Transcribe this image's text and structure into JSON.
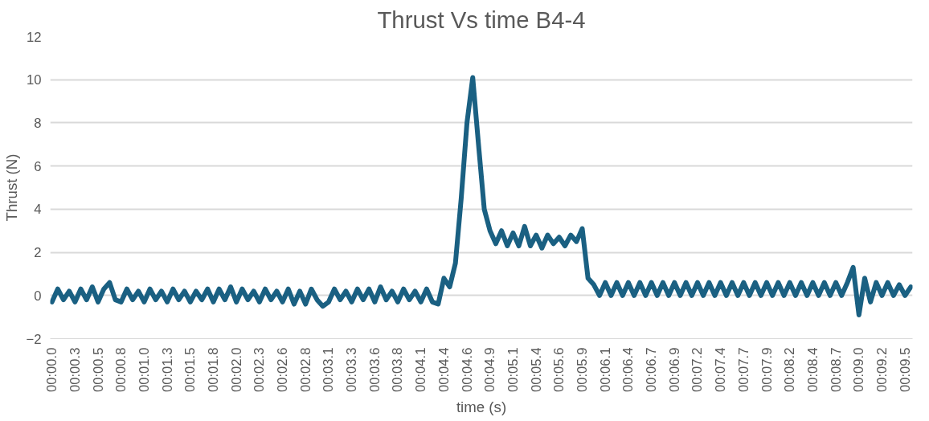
{
  "chart_data": {
    "type": "line",
    "title": "Thrust Vs time B4-4",
    "xlabel": "time (s)",
    "ylabel": "Thrust (N)",
    "ylim": [
      -2,
      12
    ],
    "yticks": [
      -2,
      0,
      2,
      4,
      6,
      8,
      10,
      12
    ],
    "categories": [
      "00:00.0",
      null,
      null,
      null,
      "00:00.3",
      null,
      null,
      null,
      "00:00.5",
      null,
      null,
      null,
      "00:00.8",
      null,
      null,
      null,
      "00:01.0",
      null,
      null,
      null,
      "00:01.3",
      null,
      null,
      null,
      "00:01.5",
      null,
      null,
      null,
      "00:01.8",
      null,
      null,
      null,
      "00:02.0",
      null,
      null,
      null,
      "00:02.3",
      null,
      null,
      null,
      "00:02.6",
      null,
      null,
      null,
      "00:02.8",
      null,
      null,
      null,
      "00:03.1",
      null,
      null,
      null,
      "00:03.3",
      null,
      null,
      null,
      "00:03.6",
      null,
      null,
      null,
      "00:03.8",
      null,
      null,
      null,
      "00:04.1",
      null,
      null,
      null,
      "00:04.4",
      null,
      null,
      null,
      "00:04.6",
      null,
      null,
      null,
      "00:04.9",
      null,
      null,
      null,
      "00:05.1",
      null,
      null,
      null,
      "00:05.4",
      null,
      null,
      null,
      "00:05.6",
      null,
      null,
      null,
      "00:05.9",
      null,
      null,
      null,
      "00:06.1",
      null,
      null,
      null,
      "00:06.4",
      null,
      null,
      null,
      "00:06.7",
      null,
      null,
      null,
      "00:06.9",
      null,
      null,
      null,
      "00:07.2",
      null,
      null,
      null,
      "00:07.4",
      null,
      null,
      null,
      "00:07.7",
      null,
      null,
      null,
      "00:07.9",
      null,
      null,
      null,
      "00:08.2",
      null,
      null,
      null,
      "00:08.4",
      null,
      null,
      null,
      "00:08.7",
      null,
      null,
      null,
      "00:09.0",
      null,
      null,
      null,
      "00:09.2",
      null,
      null,
      null,
      "00:09.5",
      null
    ],
    "grid": "y",
    "series": [
      {
        "color": "#1a6082",
        "values": [
          -0.3,
          0.3,
          -0.2,
          0.2,
          -0.3,
          0.3,
          -0.2,
          0.4,
          -0.3,
          0.3,
          0.6,
          -0.2,
          -0.3,
          0.3,
          -0.2,
          0.2,
          -0.3,
          0.3,
          -0.2,
          0.2,
          -0.3,
          0.3,
          -0.2,
          0.2,
          -0.3,
          0.2,
          -0.2,
          0.3,
          -0.3,
          0.3,
          -0.2,
          0.4,
          -0.3,
          0.3,
          -0.2,
          0.2,
          -0.3,
          0.3,
          -0.2,
          0.2,
          -0.3,
          0.3,
          -0.4,
          0.2,
          -0.4,
          0.3,
          -0.2,
          -0.5,
          -0.3,
          0.3,
          -0.2,
          0.2,
          -0.3,
          0.3,
          -0.2,
          0.3,
          -0.3,
          0.4,
          -0.2,
          0.2,
          -0.3,
          0.3,
          -0.2,
          0.2,
          -0.3,
          0.3,
          -0.3,
          -0.4,
          0.8,
          0.4,
          1.5,
          4.5,
          8.0,
          10.1,
          7.0,
          4.0,
          3.0,
          2.4,
          3.0,
          2.3,
          2.9,
          2.3,
          3.2,
          2.3,
          2.8,
          2.2,
          2.8,
          2.4,
          2.7,
          2.3,
          2.8,
          2.5,
          3.1,
          0.8,
          0.5,
          0,
          0.6,
          0,
          0.6,
          0,
          0.6,
          0,
          0.6,
          0,
          0.6,
          0,
          0.6,
          0,
          0.6,
          0,
          0.6,
          0,
          0.6,
          0,
          0.6,
          0,
          0.6,
          0,
          0.6,
          0,
          0.6,
          0,
          0.6,
          0,
          0.6,
          0,
          0.6,
          0,
          0.6,
          0,
          0.6,
          0,
          0.6,
          0,
          0.6,
          0,
          0.6,
          0,
          0.6,
          1.3,
          -0.9,
          0.8,
          -0.3,
          0.6,
          0,
          0.6,
          0,
          0.5,
          0,
          0.4
        ]
      }
    ]
  }
}
